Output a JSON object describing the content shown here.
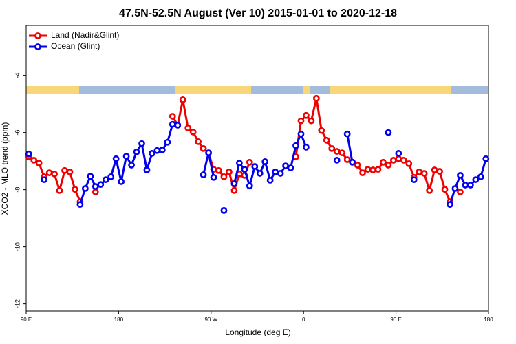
{
  "chart_data": {
    "type": "line",
    "title": "47.5N-52.5N August (Ver 10)   2015-01-01 to 2020-12-18",
    "x_label": "Longitude (deg E)",
    "y_label": "XCO2 - MLO trend (ppm)",
    "x": [
      92.5,
      97.5,
      102.5,
      107.5,
      112.5,
      117.5,
      122.5,
      127.5,
      132.5,
      137.5,
      142.5,
      147.5,
      152.5,
      157.5,
      162.5,
      167.5,
      172.5,
      177.5,
      182.5,
      187.5,
      192.5,
      197.5,
      202.5,
      207.5,
      212.5,
      217.5,
      222.5,
      227.5,
      232.5,
      237.5,
      242.5,
      247.5,
      252.5,
      257.5,
      262.5,
      267.5,
      272.5,
      277.5,
      282.5,
      287.5,
      292.5,
      297.5,
      302.5,
      307.5,
      312.5,
      317.5,
      322.5,
      327.5,
      332.5,
      337.5,
      342.5,
      347.5,
      352.5,
      357.5,
      362.5,
      367.5,
      372.5,
      377.5,
      382.5,
      387.5,
      392.5,
      397.5,
      402.5,
      407.5,
      412.5,
      417.5,
      422.5,
      427.5,
      432.5,
      437.5,
      442.5,
      447.5,
      452.5,
      457.5,
      462.5,
      467.5,
      472.5,
      477.5,
      482.5,
      487.5,
      492.5,
      497.5,
      502.5,
      507.5,
      512.5,
      517.5,
      522.5,
      527.5,
      532.5,
      537.5
    ],
    "xlim": [
      90,
      540
    ],
    "xticks": [
      {
        "value": 90,
        "label": "90 E"
      },
      {
        "value": 180,
        "label": "180"
      },
      {
        "value": 270,
        "label": "90 W"
      },
      {
        "value": 360,
        "label": "0"
      },
      {
        "value": 450,
        "label": "90 E"
      },
      {
        "value": 540,
        "label": "180"
      }
    ],
    "ylim": [
      -2.25,
      -12.25
    ],
    "yticks": [
      -4,
      -6,
      -8,
      -10,
      -12
    ],
    "legend": "top-left",
    "series": [
      {
        "name": "Land (Nadir&Glint)",
        "color": "#ee0000",
        "values": [
          -6.85,
          -6.97,
          -7.07,
          -7.55,
          -7.41,
          -7.45,
          -8.03,
          -7.33,
          -7.38,
          -7.99,
          -8.42,
          null,
          null,
          -8.08,
          null,
          null,
          null,
          null,
          null,
          null,
          null,
          null,
          null,
          null,
          null,
          null,
          null,
          null,
          -5.43,
          -5.74,
          -4.85,
          -5.84,
          -5.98,
          -6.32,
          -6.56,
          -6.71,
          -7.29,
          -7.33,
          -7.55,
          -7.38,
          -8.03,
          -7.45,
          -7.5,
          -7.04,
          null,
          null,
          null,
          null,
          null,
          null,
          null,
          null,
          -6.85,
          -5.59,
          -5.4,
          -5.59,
          -4.8,
          -5.93,
          -6.27,
          -6.56,
          -6.66,
          -6.71,
          -6.95,
          -7.04,
          -7.14,
          -7.41,
          -7.29,
          -7.31,
          -7.29,
          -7.04,
          -7.14,
          -6.97,
          -6.92,
          -6.97,
          -7.09,
          -7.57,
          -7.38,
          -7.43,
          -8.03,
          -7.31,
          -7.36,
          -7.99,
          -8.42,
          null,
          -8.08,
          null,
          null,
          null,
          null,
          null
        ]
      },
      {
        "name": "Ocean (Glint)",
        "color": "#0000ee",
        "values": [
          -6.75,
          null,
          null,
          -7.65,
          null,
          null,
          null,
          null,
          null,
          null,
          -8.52,
          -7.96,
          -7.53,
          -7.89,
          -7.82,
          -7.65,
          -7.55,
          -6.92,
          -7.72,
          -6.83,
          -7.14,
          -6.68,
          -6.39,
          -7.31,
          -6.73,
          -6.63,
          -6.61,
          -6.34,
          -5.71,
          -5.74,
          null,
          null,
          null,
          null,
          -7.48,
          -6.71,
          -7.57,
          null,
          -8.73,
          null,
          -7.79,
          -7.07,
          -7.29,
          -7.87,
          -7.19,
          -7.43,
          -7.02,
          -7.67,
          -7.38,
          -7.43,
          -7.17,
          -7.24,
          -6.46,
          -6.05,
          -6.51,
          null,
          null,
          null,
          null,
          null,
          -6.97,
          null,
          -6.05,
          -7.04,
          null,
          null,
          null,
          null,
          null,
          null,
          -6.0,
          null,
          -6.73,
          null,
          null,
          -7.65,
          null,
          null,
          null,
          null,
          null,
          null,
          -8.52,
          -7.96,
          -7.5,
          -7.84,
          -7.84,
          -7.65,
          -7.55,
          -6.92
        ]
      }
    ]
  }
}
